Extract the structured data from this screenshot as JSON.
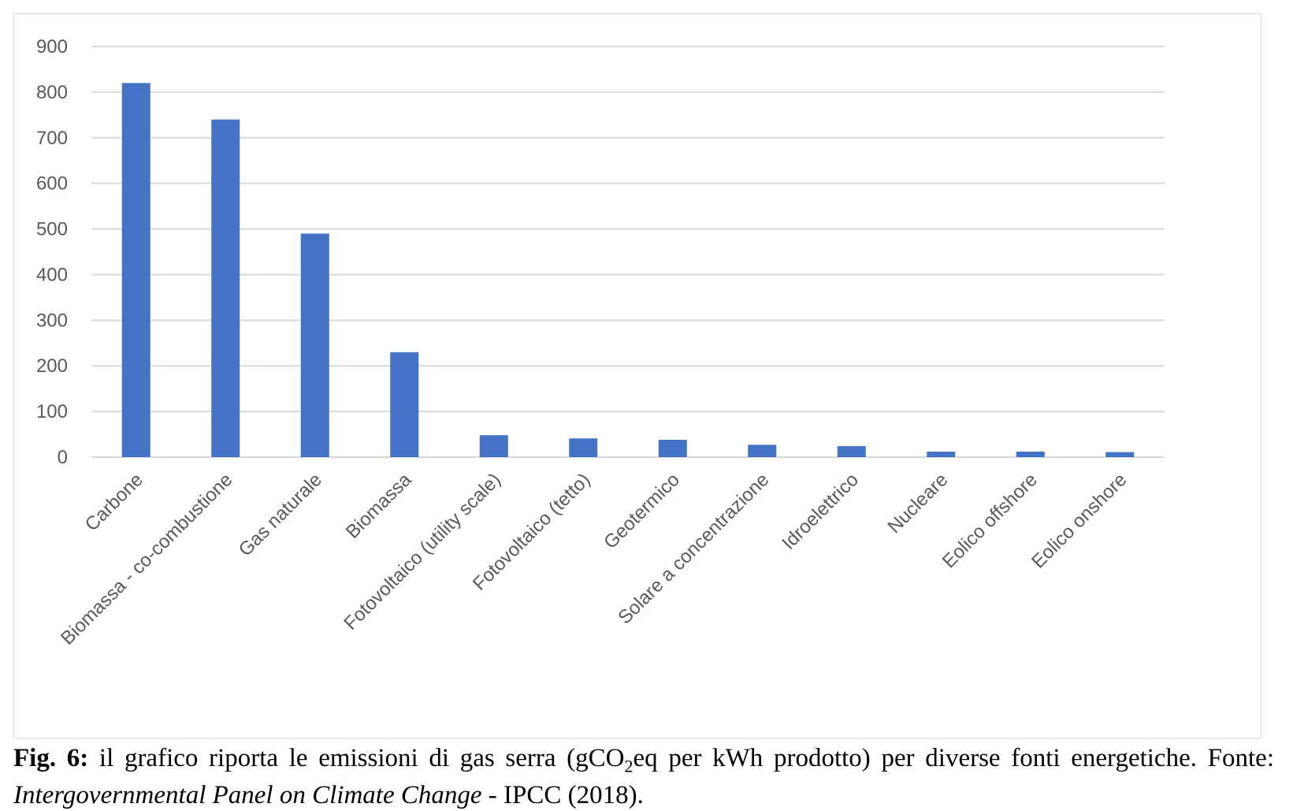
{
  "chart_data": {
    "type": "bar",
    "categories": [
      "Carbone",
      "Biomassa - co-combustione",
      "Gas naturale",
      "Biomassa",
      "Fotovoltaico (utility scale)",
      "Fotovoltaico (tetto)",
      "Geotermico",
      "Solare a concentrazione",
      "Idroelettrico",
      "Nucleare",
      "Eolico offshore",
      "Eolico onshore"
    ],
    "values": [
      820,
      740,
      490,
      230,
      48,
      41,
      38,
      27,
      24,
      12,
      12,
      11
    ],
    "ylim": [
      0,
      900
    ],
    "yticks": [
      "0",
      "100",
      "200",
      "300",
      "400",
      "500",
      "600",
      "700",
      "800",
      "900"
    ],
    "grid": true,
    "bar_color": "#4472c4",
    "title": "",
    "xlabel": "",
    "ylabel": ""
  },
  "caption": {
    "label": "Fig. 6:",
    "text_before_sub": " il grafico riporta le emissioni di gas serra (gCO",
    "subscript": "2",
    "text_after_sub": "eq per kWh prodotto) per diverse fonti energetiche. Fonte: ",
    "source_italic": "Intergovernmental Panel on Climate Change",
    "source_rest": " - IPCC (2018)."
  }
}
